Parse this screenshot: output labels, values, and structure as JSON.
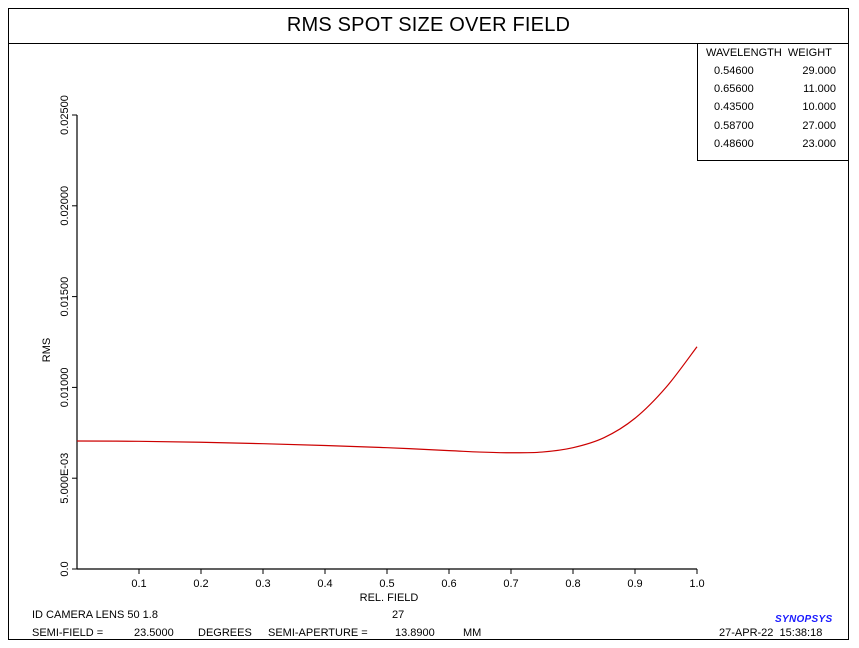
{
  "title": "RMS SPOT SIZE OVER FIELD",
  "legend": {
    "header": "WAVELENGTH  WEIGHT",
    "rows": [
      {
        "wavelength": "0.54600",
        "weight": "29.000"
      },
      {
        "wavelength": "0.65600",
        "weight": "11.000"
      },
      {
        "wavelength": "0.43500",
        "weight": "10.000"
      },
      {
        "wavelength": "0.58700",
        "weight": "27.000"
      },
      {
        "wavelength": "0.48600",
        "weight": "23.000"
      }
    ]
  },
  "footer": {
    "lens_name": "ID CAMERA LENS 50 1.8",
    "center_number": "27",
    "semi_field_label": "SEMI-FIELD =",
    "semi_field_value": "23.5000",
    "semi_field_unit": "DEGREES",
    "semi_aperture_label": "SEMI-APERTURE =",
    "semi_aperture_value": "13.8900",
    "semi_aperture_unit": "MM",
    "date_time": "27-APR-22  15:38:18",
    "logo": "SYNOPSYS"
  },
  "chart_data": {
    "type": "line",
    "title": "RMS SPOT SIZE OVER FIELD",
    "xlabel": "REL. FIELD",
    "ylabel": "RMS",
    "xlim": [
      0,
      1.0
    ],
    "ylim": [
      0,
      0.025
    ],
    "x_ticks": [
      0.1,
      0.2,
      0.3,
      0.4,
      0.5,
      0.6,
      0.7,
      0.8,
      0.9,
      1.0
    ],
    "x_tick_labels": [
      "0.1",
      "0.2",
      "0.3",
      "0.4",
      "0.5",
      "0.6",
      "0.7",
      "0.8",
      "0.9",
      "1.0"
    ],
    "y_ticks": [
      0,
      0.005,
      0.01,
      0.015,
      0.02,
      0.025
    ],
    "y_tick_labels": [
      "0.0",
      "5.000E-03",
      "0.01000",
      "0.01500",
      "0.02000",
      "0.02500"
    ],
    "grid": false,
    "series": [
      {
        "color": "#cc0000",
        "x": [
          0,
          0.1,
          0.2,
          0.3,
          0.4,
          0.5,
          0.6,
          0.65,
          0.7,
          0.75,
          0.8,
          0.85,
          0.9,
          0.95,
          1.0
        ],
        "y": [
          0.00705,
          0.00703,
          0.00698,
          0.0069,
          0.0068,
          0.00668,
          0.00652,
          0.00644,
          0.0064,
          0.00644,
          0.00668,
          0.00723,
          0.0083,
          0.01,
          0.01224
        ]
      }
    ]
  }
}
